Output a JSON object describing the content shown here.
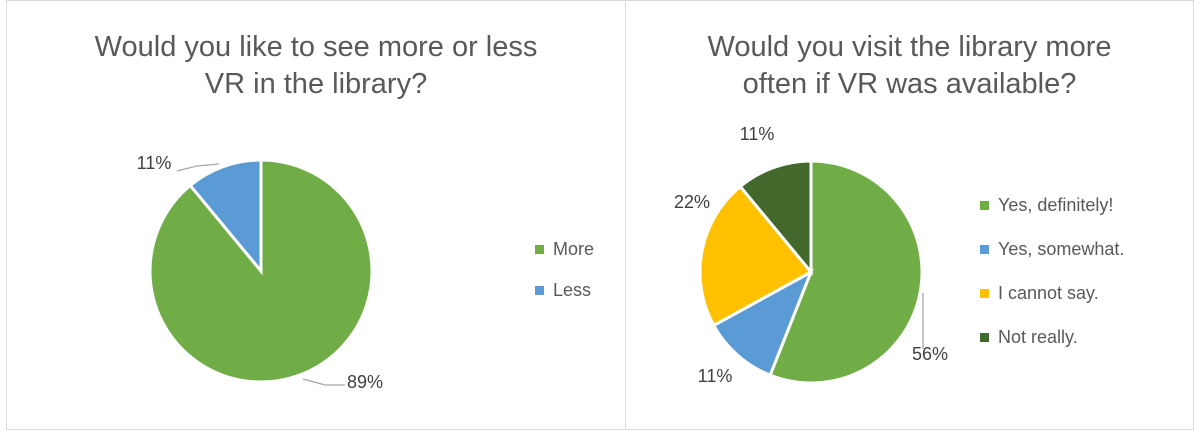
{
  "chart_data": [
    {
      "type": "pie",
      "title_lines": [
        "Would you like to see more or less",
        "VR in the library?"
      ],
      "categories": [
        "More",
        "Less"
      ],
      "values": [
        89,
        11
      ],
      "labels": [
        "89%",
        "11%"
      ],
      "colors": [
        "#70ad47",
        "#5b9bd5"
      ],
      "legend": "right"
    },
    {
      "type": "pie",
      "title_lines": [
        "Would you visit the library more",
        "often if VR was available?"
      ],
      "categories": [
        "Yes, definitely!",
        "Yes, somewhat.",
        "I cannot say.",
        "Not really."
      ],
      "values": [
        56,
        11,
        22,
        11
      ],
      "labels": [
        "56%",
        "11%",
        "22%",
        "11%"
      ],
      "colors": [
        "#70ad47",
        "#5b9bd5",
        "#ffc000",
        "#43682b"
      ],
      "legend": "right"
    }
  ]
}
